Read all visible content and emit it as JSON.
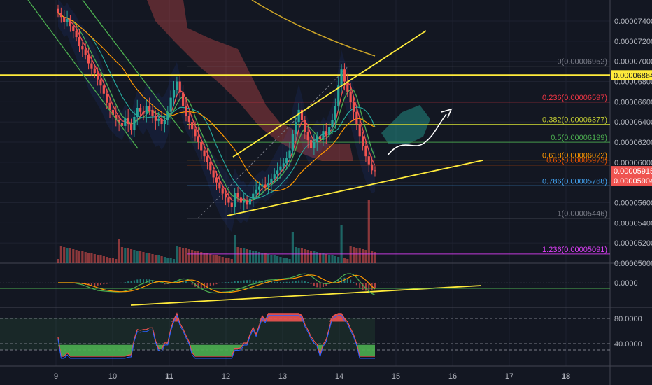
{
  "chart_data": {
    "type": "candlestick",
    "price_axis_ticks": [
      "0.00007400",
      "0.00007200",
      "0.00007000",
      "0.00006800",
      "0.00006600",
      "0.00006400",
      "0.00006200",
      "0.00006000",
      "0.00005800",
      "0.00005600",
      "0.00005400",
      "0.00005200",
      "0.00005000"
    ],
    "price_badges": [
      {
        "label": "0.00006864",
        "value": 6864,
        "color": "#ffeb3b",
        "text_color": "#131722"
      },
      {
        "label": "0.00005915",
        "value": 5915,
        "color": "#ef5350",
        "text_color": "#ffffff"
      },
      {
        "label": "0.00005904",
        "value": 5904,
        "color": "#ef5350",
        "text_color": "#ffffff"
      }
    ],
    "horizontal_line_value": 6864,
    "date_ticks": [
      "9",
      "10",
      "11",
      "12",
      "13",
      "14",
      "15",
      "16",
      "17",
      "18"
    ],
    "fib_levels": [
      {
        "label": "0(0.00006952)",
        "value": 6952,
        "color": "#787b86"
      },
      {
        "label": "0.236(0.00006597)",
        "value": 6597,
        "color": "#f23645"
      },
      {
        "label": "0.382(0.00006377)",
        "value": 6377,
        "color": "#c0ca33"
      },
      {
        "label": "0.5(0.00006199)",
        "value": 6199,
        "color": "#4caf50"
      },
      {
        "label": "0.618(0.00006022)",
        "value": 6022,
        "color": "#ff9800"
      },
      {
        "label": "0.65(0.00005973)",
        "value": 5973,
        "color": "#e65100"
      },
      {
        "label": "0.786(0.00005768)",
        "value": 5768,
        "color": "#42a5f5"
      },
      {
        "label": "1(0.00005446)",
        "value": 5446,
        "color": "#787b86"
      },
      {
        "label": "1.236(0.00005091)",
        "value": 5091,
        "color": "#e040fb"
      }
    ],
    "macd_axis_ticks": [
      "0.0000"
    ],
    "rsi_axis_ticks": [
      "80.0000",
      "40.0000"
    ],
    "series_close": [
      7480,
      7440,
      7390,
      7420,
      7350,
      7300,
      7240,
      7150,
      7120,
      7060,
      6980,
      6930,
      6880,
      6820,
      6760,
      6680,
      6590,
      6520,
      6470,
      6420,
      6390,
      6360,
      6440,
      6380,
      6320,
      6450,
      6540,
      6500,
      6480,
      6560,
      6520,
      6460,
      6410,
      6430,
      6380,
      6420,
      6500,
      6640,
      6720,
      6800,
      6690,
      6560,
      6460,
      6400,
      6330,
      6260,
      6200,
      6120,
      6060,
      6000,
      5920,
      5850,
      5800,
      5740,
      5690,
      5650,
      5600,
      5560,
      5700,
      5650,
      5600,
      5620,
      5580,
      5640,
      5690,
      5730,
      5760,
      5780,
      5760,
      5790,
      5840,
      5880,
      5920,
      5960,
      5990,
      6040,
      6120,
      6280,
      6400,
      6520,
      6420,
      6300,
      6220,
      6140,
      6200,
      6260,
      6230,
      6310,
      6270,
      6350,
      6420,
      6560,
      6760,
      6920,
      6800,
      6700,
      6600,
      6500,
      6380,
      6260,
      6160,
      6060,
      5980,
      5920,
      5915
    ],
    "colors": {
      "up": "#26a69a",
      "down": "#ef5350",
      "trendline": "#ffeb3b",
      "background": "#131722"
    }
  }
}
